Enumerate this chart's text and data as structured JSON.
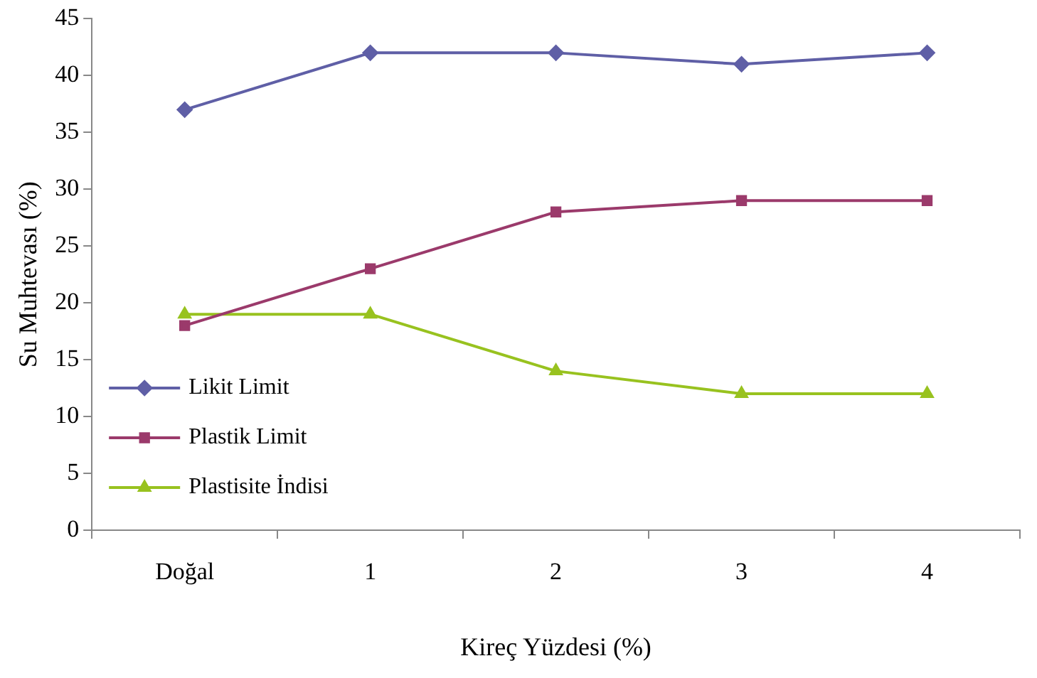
{
  "chart_data": {
    "type": "line",
    "xlabel": "Kireç Yüzdesi (%)",
    "ylabel": "Su Muhtevası (%)",
    "categories": [
      "Doğal",
      "1",
      "2",
      "3",
      "4"
    ],
    "series": [
      {
        "name": "Likit Limit",
        "color": "#5f5fa6",
        "values": [
          37,
          42,
          42,
          41,
          42
        ],
        "marker": "diamond"
      },
      {
        "name": "Plastik Limit",
        "color": "#9b3a6b",
        "values": [
          18,
          23,
          28,
          29,
          29
        ],
        "marker": "square"
      },
      {
        "name": "Plastisite İndisi",
        "color": "#98c21f",
        "values": [
          19,
          19,
          14,
          12,
          12
        ],
        "marker": "triangle"
      }
    ],
    "ylim": [
      0,
      45
    ],
    "yticks": [
      0,
      5,
      10,
      15,
      20,
      25,
      30,
      35,
      40,
      45
    ],
    "grid": false,
    "legend": "bottom left",
    "line_style": "solid"
  }
}
